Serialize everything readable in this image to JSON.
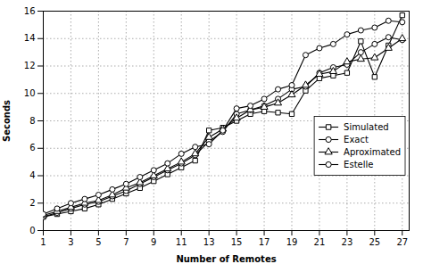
{
  "chart_data": {
    "type": "line",
    "xlabel": "Number of Remotes",
    "ylabel": "Seconds",
    "x": [
      1,
      2,
      3,
      4,
      5,
      6,
      7,
      8,
      9,
      10,
      11,
      12,
      13,
      14,
      15,
      16,
      17,
      18,
      19,
      20,
      21,
      22,
      23,
      24,
      25,
      26,
      27
    ],
    "series": [
      {
        "name": "Simulated",
        "color": "#000000",
        "marker": "square",
        "line_style": "solid",
        "values": [
          1.0,
          1.2,
          1.4,
          1.6,
          1.9,
          2.3,
          2.7,
          3.1,
          3.6,
          4.1,
          4.6,
          5.1,
          7.3,
          7.5,
          8.0,
          8.5,
          8.7,
          8.6,
          8.5,
          10.2,
          11.1,
          11.3,
          11.5,
          13.8,
          11.2,
          13.5,
          15.7
        ]
      },
      {
        "name": "Exact",
        "color": "#000000",
        "marker": "circle",
        "line_style": "solid",
        "values": [
          1.0,
          1.3,
          1.6,
          1.9,
          2.1,
          2.5,
          2.9,
          3.4,
          3.9,
          4.4,
          4.9,
          5.5,
          6.5,
          7.2,
          8.5,
          8.8,
          9.1,
          9.6,
          10.3,
          10.5,
          11.5,
          11.9,
          12.1,
          13.0,
          13.6,
          14.1,
          13.9
        ]
      },
      {
        "name": "Aproximated",
        "color": "#000000",
        "marker": "triangle",
        "line_style": "solid",
        "values": [
          1.1,
          1.4,
          1.7,
          2.0,
          2.2,
          2.6,
          3.1,
          3.5,
          4.0,
          4.5,
          5.0,
          5.6,
          6.8,
          7.4,
          8.2,
          8.8,
          9.0,
          9.3,
          9.9,
          10.6,
          11.4,
          11.6,
          12.3,
          12.5,
          12.6,
          13.3,
          14.0
        ]
      },
      {
        "name": "Estelle",
        "color": "#000000",
        "marker": "circle",
        "line_style": "solid",
        "values": [
          1.2,
          1.6,
          2.0,
          2.3,
          2.6,
          3.0,
          3.4,
          3.9,
          4.4,
          4.9,
          5.6,
          6.1,
          6.3,
          7.3,
          8.9,
          9.1,
          9.6,
          10.3,
          10.6,
          12.8,
          13.3,
          13.6,
          14.3,
          14.6,
          14.8,
          15.3,
          15.2
        ]
      }
    ],
    "xlim": [
      1,
      27.5
    ],
    "xticks": [
      1,
      3,
      5,
      7,
      9,
      11,
      13,
      15,
      17,
      19,
      21,
      23,
      25,
      27
    ],
    "ylim": [
      0,
      16
    ],
    "yticks": [
      0,
      2,
      4,
      6,
      8,
      10,
      12,
      14,
      16
    ],
    "grid": true,
    "legend": "lower right"
  }
}
